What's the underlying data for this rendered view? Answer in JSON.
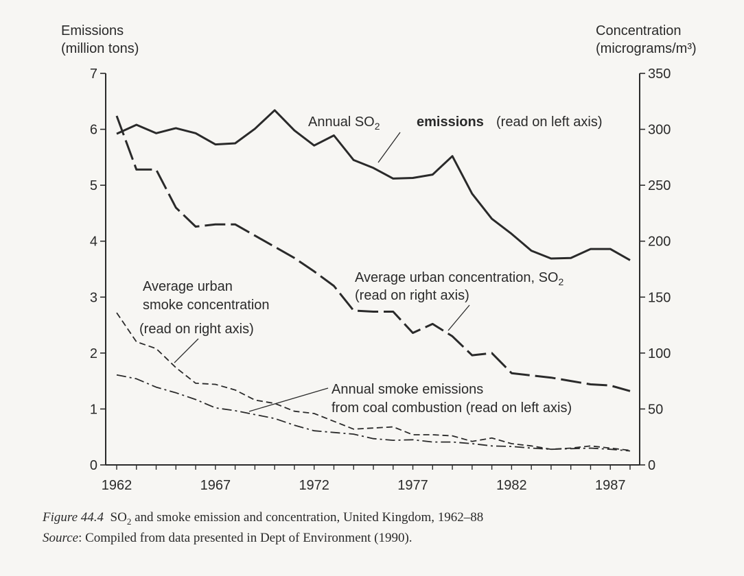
{
  "chart_data": {
    "type": "line",
    "x": [
      1962,
      1963,
      1964,
      1965,
      1966,
      1967,
      1968,
      1969,
      1970,
      1971,
      1972,
      1973,
      1974,
      1975,
      1976,
      1977,
      1978,
      1979,
      1980,
      1981,
      1982,
      1983,
      1984,
      1985,
      1986,
      1987,
      1988
    ],
    "x_ticks": [
      "1962",
      "1967",
      "1972",
      "1977",
      "1982",
      "1987"
    ],
    "xlim": [
      1962,
      1988
    ],
    "left_axis": {
      "label_line1": "Emissions",
      "label_line2": "(million tons)",
      "ylim": [
        0,
        7
      ],
      "ticks": [
        "0",
        "1",
        "2",
        "3",
        "4",
        "5",
        "6",
        "7"
      ]
    },
    "right_axis": {
      "label_line1": "Concentration",
      "label_line2": "(micrograms/m³)",
      "ylim": [
        0,
        350
      ],
      "ticks": [
        "0",
        "50",
        "100",
        "150",
        "200",
        "250",
        "300",
        "350"
      ]
    },
    "series": [
      {
        "key": "so2_emissions",
        "axis": "left",
        "style": "solid",
        "values": [
          5.92,
          6.08,
          5.93,
          6.02,
          5.93,
          5.73,
          5.75,
          6.01,
          6.34,
          5.98,
          5.71,
          5.89,
          5.45,
          5.31,
          5.12,
          5.13,
          5.19,
          5.52,
          4.85,
          4.4,
          4.13,
          3.83,
          3.69,
          3.7,
          3.86,
          3.86,
          3.66
        ]
      },
      {
        "key": "so2_concentration",
        "axis": "right",
        "style": "long-dash",
        "values": [
          312,
          264,
          264,
          230,
          213,
          215,
          215,
          205,
          195,
          185,
          173,
          160,
          138,
          137,
          137,
          118,
          126,
          115,
          98,
          100,
          82,
          80,
          78,
          75,
          72,
          71,
          66
        ]
      },
      {
        "key": "smoke_concentration",
        "axis": "right",
        "style": "short-dash",
        "values": [
          136,
          110,
          104,
          87,
          73,
          72,
          67,
          58,
          55,
          48,
          46,
          39,
          32,
          33,
          34,
          27,
          27,
          26,
          21,
          24,
          19,
          17,
          14,
          15,
          17,
          15,
          13
        ]
      },
      {
        "key": "smoke_emissions",
        "axis": "left",
        "style": "dash-dot",
        "values": [
          1.61,
          1.54,
          1.39,
          1.29,
          1.17,
          1.02,
          0.97,
          0.9,
          0.83,
          0.71,
          0.61,
          0.58,
          0.55,
          0.47,
          0.44,
          0.45,
          0.41,
          0.41,
          0.38,
          0.34,
          0.33,
          0.3,
          0.28,
          0.29,
          0.3,
          0.28,
          0.25
        ]
      }
    ],
    "annotations": {
      "so2_emissions_label": "Annual SO",
      "so2_emissions_sub": "2",
      "so2_emissions_rest": "emissions",
      "so2_emissions_axis_note": "(read on left axis)",
      "so2_conc_line1": "Average urban concentration, SO",
      "so2_conc_sub": "2",
      "so2_conc_line2": "(read on right axis)",
      "smoke_conc_line1": "Average urban",
      "smoke_conc_line2": "smoke concentration",
      "smoke_conc_line3": "(read on right axis)",
      "smoke_em_line1": "Annual smoke emissions",
      "smoke_em_line2": "from coal combustion (read on left axis)"
    },
    "grid": false,
    "legend": "none"
  },
  "caption": {
    "figure_label": "Figure 44.4",
    "text_pre": "SO",
    "text_sub": "2",
    "text_post": " and smoke emission and concentration, United Kingdom, 1962–88",
    "source_label": "Source",
    "source_text": ": Compiled from data presented in Dept of Environment (1990)."
  }
}
